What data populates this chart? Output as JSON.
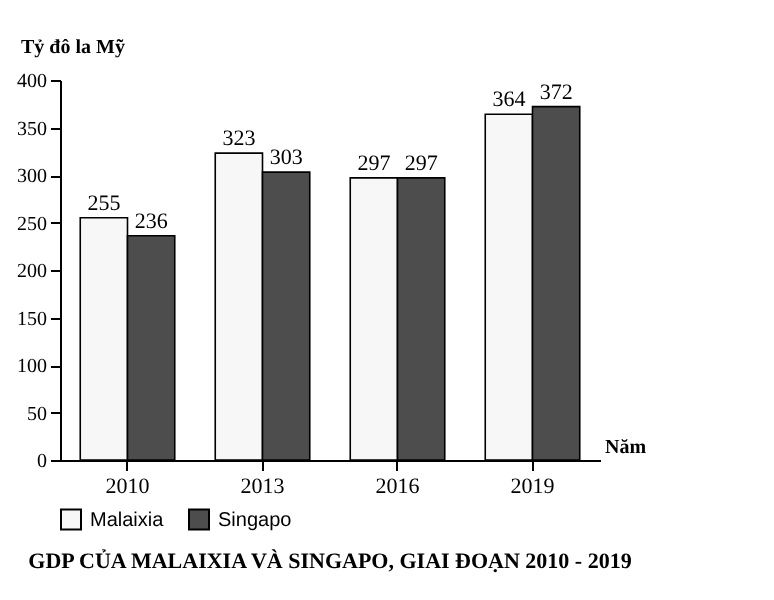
{
  "chart_data": {
    "type": "bar",
    "title": "GDP CỦA MALAIXIA VÀ SINGAPO, GIAI ĐOẠN 2010 - 2019",
    "xlabel": "Năm",
    "ylabel": "Tỷ đô la Mỹ",
    "categories": [
      "2010",
      "2013",
      "2016",
      "2019"
    ],
    "series": [
      {
        "name": "Malaixia",
        "color": "#f7f7f7",
        "values": [
          255,
          323,
          297,
          364
        ]
      },
      {
        "name": "Singapo",
        "color": "#4d4d4d",
        "values": [
          236,
          303,
          297,
          372
        ]
      }
    ],
    "ylim": [
      0,
      400
    ],
    "yticks": [
      0,
      50,
      100,
      150,
      200,
      250,
      300,
      350,
      400
    ],
    "data_labels": true,
    "grid": false,
    "legend": "bottom"
  }
}
